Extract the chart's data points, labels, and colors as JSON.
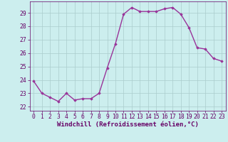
{
  "x": [
    0,
    1,
    2,
    3,
    4,
    5,
    6,
    7,
    8,
    9,
    10,
    11,
    12,
    13,
    14,
    15,
    16,
    17,
    18,
    19,
    20,
    21,
    22,
    23
  ],
  "y": [
    23.9,
    23.0,
    22.7,
    22.4,
    23.0,
    22.5,
    22.6,
    22.6,
    23.0,
    24.9,
    26.7,
    28.9,
    29.4,
    29.1,
    29.1,
    29.1,
    29.3,
    29.4,
    28.9,
    27.9,
    26.4,
    26.3,
    25.6,
    25.4
  ],
  "line_color": "#993399",
  "marker": "D",
  "marker_size": 1.8,
  "bg_color": "#cceeee",
  "grid_color": "#aacccc",
  "xlabel": "Windchill (Refroidissement éolien,°C)",
  "xlim": [
    -0.5,
    23.5
  ],
  "ylim": [
    21.7,
    29.85
  ],
  "yticks": [
    22,
    23,
    24,
    25,
    26,
    27,
    28,
    29
  ],
  "xticks": [
    0,
    1,
    2,
    3,
    4,
    5,
    6,
    7,
    8,
    9,
    10,
    11,
    12,
    13,
    14,
    15,
    16,
    17,
    18,
    19,
    20,
    21,
    22,
    23
  ],
  "tick_color": "#660066",
  "label_fontsize": 6.5,
  "tick_fontsize": 5.8,
  "line_width": 1.0
}
